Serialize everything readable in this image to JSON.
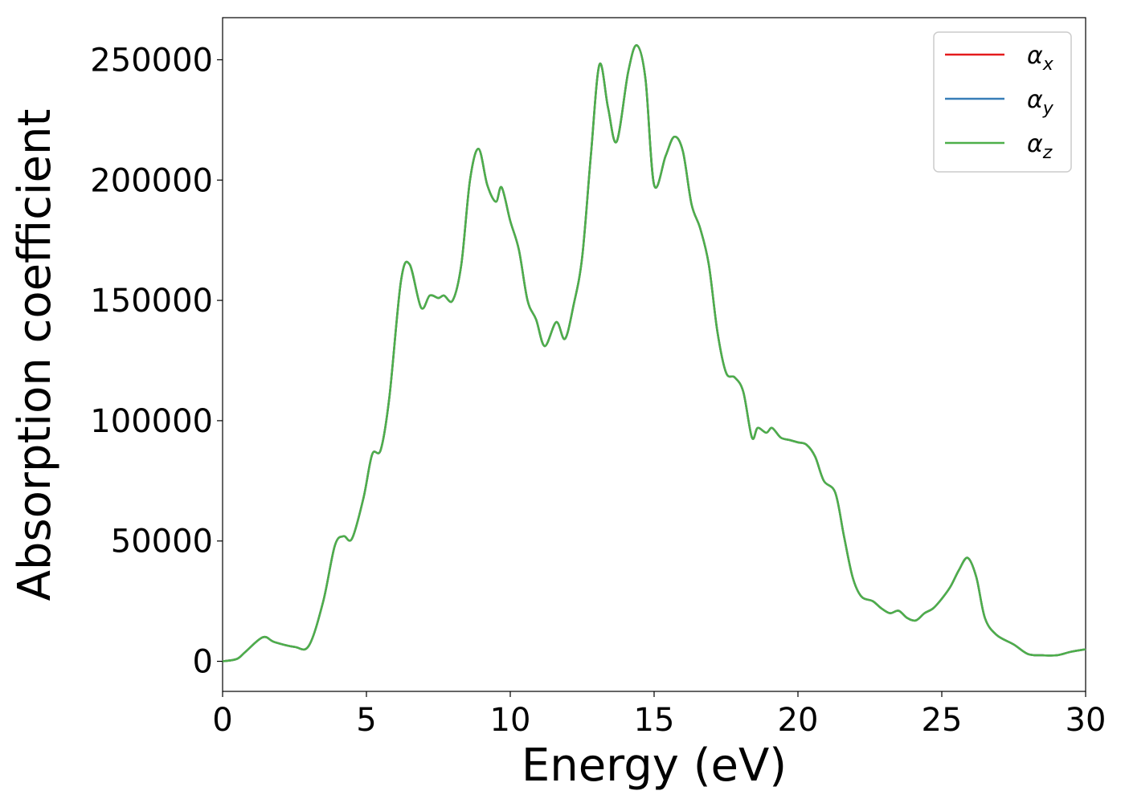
{
  "chart_data": {
    "type": "line",
    "xlabel": "Energy (eV)",
    "ylabel": "Absorption coefficient",
    "xlim": [
      0,
      30
    ],
    "ylim": [
      -12500,
      267500
    ],
    "x_ticks": [
      0,
      5,
      10,
      15,
      20,
      25,
      30
    ],
    "y_ticks": [
      0,
      50000,
      100000,
      150000,
      200000,
      250000
    ],
    "grid": false,
    "legend_position": "top-right",
    "x": [
      0,
      0.5,
      0.8,
      1.4,
      1.8,
      2.5,
      3.0,
      3.5,
      3.9,
      4.2,
      4.5,
      4.9,
      5.2,
      5.5,
      5.8,
      6.2,
      6.5,
      6.9,
      7.2,
      7.5,
      7.7,
      8.0,
      8.3,
      8.6,
      8.9,
      9.2,
      9.5,
      9.7,
      10.0,
      10.3,
      10.6,
      10.9,
      11.2,
      11.6,
      11.9,
      12.2,
      12.5,
      12.8,
      13.1,
      13.4,
      13.7,
      14.1,
      14.4,
      14.7,
      15.0,
      15.4,
      15.7,
      16.0,
      16.3,
      16.6,
      16.9,
      17.2,
      17.5,
      17.8,
      18.1,
      18.4,
      18.6,
      18.9,
      19.1,
      19.4,
      19.7,
      20.0,
      20.3,
      20.6,
      20.9,
      21.3,
      21.6,
      21.9,
      22.2,
      22.6,
      22.9,
      23.2,
      23.5,
      23.8,
      24.1,
      24.4,
      24.7,
      25.0,
      25.3,
      25.6,
      25.9,
      26.2,
      26.5,
      26.9,
      27.5,
      28.0,
      28.5,
      29.0,
      29.5,
      30.0
    ],
    "series": [
      {
        "name": "α_x",
        "color": "#e41a1c",
        "values": [
          0,
          1000,
          4000,
          10000,
          8000,
          6000,
          6500,
          25000,
          48000,
          52000,
          51000,
          68000,
          86000,
          88000,
          110000,
          158000,
          165000,
          147000,
          152000,
          151000,
          152000,
          150000,
          165000,
          200000,
          213000,
          198000,
          191000,
          197000,
          183000,
          171000,
          150000,
          142000,
          131000,
          141000,
          134000,
          148000,
          168000,
          210000,
          248000,
          230000,
          216000,
          245000,
          256000,
          242000,
          198000,
          210000,
          218000,
          212000,
          190000,
          180000,
          165000,
          137000,
          120000,
          118000,
          112000,
          93000,
          97000,
          95000,
          97000,
          93000,
          92000,
          91000,
          90000,
          85000,
          75000,
          70000,
          52000,
          35000,
          27000,
          25000,
          22000,
          20000,
          21000,
          18000,
          17000,
          20000,
          22000,
          26000,
          31000,
          38000,
          43000,
          35000,
          18000,
          11000,
          7000,
          3000,
          2500,
          2500,
          4000,
          5000
        ]
      },
      {
        "name": "α_y",
        "color": "#377eb8",
        "values": [
          0,
          1000,
          4000,
          10000,
          8000,
          6000,
          6500,
          25000,
          48000,
          52000,
          51000,
          68000,
          86000,
          88000,
          110000,
          158000,
          165000,
          147000,
          152000,
          151000,
          152000,
          150000,
          165000,
          200000,
          213000,
          198000,
          191000,
          197000,
          183000,
          171000,
          150000,
          142000,
          131000,
          141000,
          134000,
          148000,
          168000,
          210000,
          248000,
          230000,
          216000,
          245000,
          256000,
          242000,
          198000,
          210000,
          218000,
          212000,
          190000,
          180000,
          165000,
          137000,
          120000,
          118000,
          112000,
          93000,
          97000,
          95000,
          97000,
          93000,
          92000,
          91000,
          90000,
          85000,
          75000,
          70000,
          52000,
          35000,
          27000,
          25000,
          22000,
          20000,
          21000,
          18000,
          17000,
          20000,
          22000,
          26000,
          31000,
          38000,
          43000,
          35000,
          18000,
          11000,
          7000,
          3000,
          2500,
          2500,
          4000,
          5000
        ]
      },
      {
        "name": "α_z",
        "color": "#4daf4a",
        "values": [
          0,
          1000,
          4000,
          10000,
          8000,
          6000,
          6500,
          25000,
          48000,
          52000,
          51000,
          68000,
          86000,
          88000,
          110000,
          158000,
          165000,
          147000,
          152000,
          151000,
          152000,
          150000,
          165000,
          200000,
          213000,
          198000,
          191000,
          197000,
          183000,
          171000,
          150000,
          142000,
          131000,
          141000,
          134000,
          148000,
          168000,
          210000,
          248000,
          230000,
          216000,
          245000,
          256000,
          242000,
          198000,
          210000,
          218000,
          212000,
          190000,
          180000,
          165000,
          137000,
          120000,
          118000,
          112000,
          93000,
          97000,
          95000,
          97000,
          93000,
          92000,
          91000,
          90000,
          85000,
          75000,
          70000,
          52000,
          35000,
          27000,
          25000,
          22000,
          20000,
          21000,
          18000,
          17000,
          20000,
          22000,
          26000,
          31000,
          38000,
          43000,
          35000,
          18000,
          11000,
          7000,
          3000,
          2500,
          2500,
          4000,
          5000
        ]
      }
    ]
  }
}
